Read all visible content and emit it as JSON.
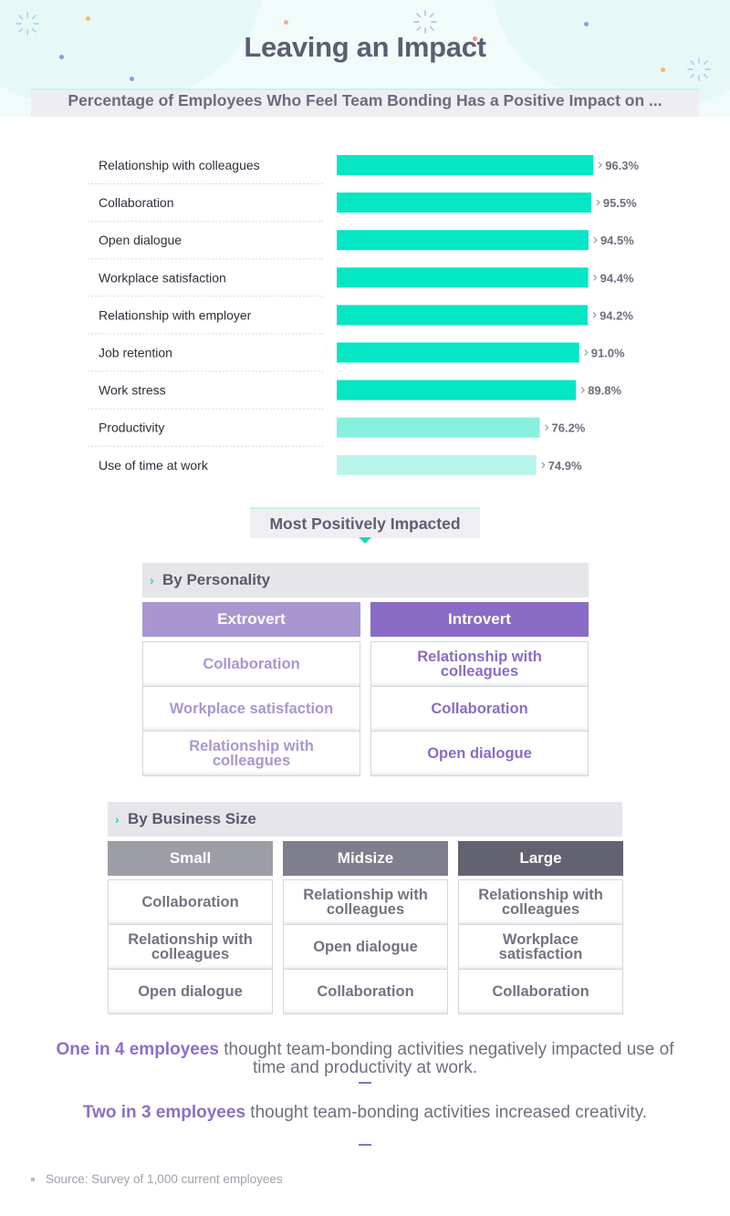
{
  "header": {
    "title": "Leaving an Impact",
    "subtitle": "Percentage of Employees Who Feel Team Bonding Has a Positive Impact on ..."
  },
  "colors": {
    "bar_primary": "#05e6c4",
    "bar_productivity": "#88f0df",
    "bar_time": "#b9f5ec",
    "extrovert": "#a996d0",
    "introvert": "#8a6cc6",
    "small": "#9d9da6",
    "midsize": "#7e7e8c",
    "large": "#626271",
    "accent": "#19d9bb"
  },
  "chart_data": {
    "type": "bar",
    "orientation": "horizontal",
    "categories": [
      "Relationship with colleagues",
      "Collaboration",
      "Open dialogue",
      "Workplace satisfaction",
      "Relationship with employer",
      "Job retention",
      "Work stress",
      "Productivity",
      "Use of time at work"
    ],
    "values": [
      96.3,
      95.5,
      94.5,
      94.4,
      94.2,
      91.0,
      89.8,
      76.2,
      74.9
    ],
    "value_labels": [
      "96.3%",
      "95.5%",
      "94.5%",
      "94.4%",
      "94.2%",
      "91.0%",
      "89.8%",
      "76.2%",
      "74.9%"
    ],
    "xlim": [
      0,
      100
    ],
    "grid": false
  },
  "impact_section": {
    "heading": "Most Positively Impacted",
    "personality": {
      "title": "By Personality",
      "columns": [
        {
          "header": "Extrovert",
          "items": [
            "Collaboration",
            "Workplace satisfaction",
            "Relationship with colleagues"
          ]
        },
        {
          "header": "Introvert",
          "items": [
            "Relationship with colleagues",
            "Collaboration",
            "Open dialogue"
          ]
        }
      ]
    },
    "business_size": {
      "title": "By Business Size",
      "columns": [
        {
          "header": "Small",
          "items": [
            "Collaboration",
            "Relationship with colleagues",
            "Open dialogue"
          ]
        },
        {
          "header": "Midsize",
          "items": [
            "Relationship with colleagues",
            "Open dialogue",
            "Collaboration"
          ]
        },
        {
          "header": "Large",
          "items": [
            "Relationship with colleagues",
            "Workplace satisfaction",
            "Collaboration"
          ]
        }
      ]
    }
  },
  "notes": [
    {
      "highlight": "One in 4 employees",
      "text": " thought team-bonding activities negatively impacted use of time and productivity at work."
    },
    {
      "highlight": "Two in 3 employees",
      "text": " thought team-bonding activities increased creativity."
    }
  ],
  "source": "Source: Survey of 1,000 current employees"
}
